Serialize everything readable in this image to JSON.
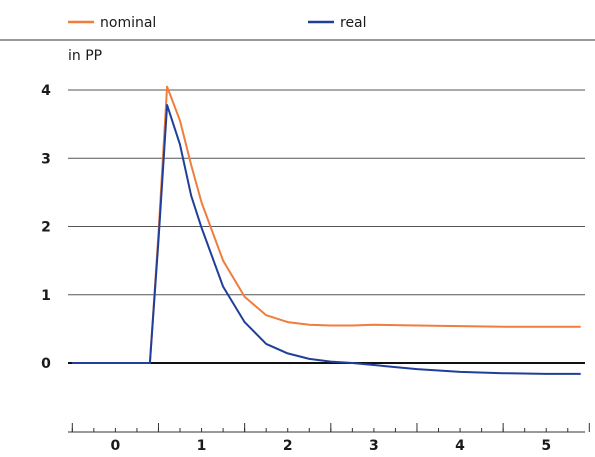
{
  "chart_data": {
    "type": "line",
    "ylabel": "in PP",
    "ylim": [
      -0.8,
      4.3
    ],
    "yticks": [
      0,
      1,
      2,
      3,
      4
    ],
    "xlim": [
      -0.55,
      5.45
    ],
    "xticks": [
      0,
      1,
      2,
      3,
      4,
      5
    ],
    "grid": true,
    "legend_position": "top",
    "series": [
      {
        "name": "nominal",
        "color": "#f07d3c",
        "x": [
          -0.5,
          0.0,
          0.2,
          0.4,
          0.5,
          0.6,
          0.75,
          0.88,
          1.0,
          1.25,
          1.5,
          1.75,
          2.0,
          2.25,
          2.5,
          2.75,
          3.0,
          3.5,
          4.0,
          4.5,
          5.0,
          5.4
        ],
        "y": [
          0,
          0,
          0,
          0,
          1.9,
          4.05,
          3.55,
          2.9,
          2.35,
          1.5,
          0.97,
          0.7,
          0.6,
          0.56,
          0.55,
          0.55,
          0.56,
          0.55,
          0.54,
          0.53,
          0.53,
          0.53
        ]
      },
      {
        "name": "real",
        "color": "#1f3f99",
        "x": [
          -0.5,
          0.0,
          0.2,
          0.4,
          0.5,
          0.6,
          0.75,
          0.88,
          1.0,
          1.25,
          1.5,
          1.75,
          2.0,
          2.25,
          2.5,
          2.75,
          3.0,
          3.25,
          3.5,
          4.0,
          4.5,
          5.0,
          5.4
        ],
        "y": [
          0,
          0,
          0,
          0,
          1.8,
          3.78,
          3.2,
          2.45,
          1.98,
          1.12,
          0.6,
          0.28,
          0.14,
          0.06,
          0.02,
          0.0,
          -0.03,
          -0.06,
          -0.09,
          -0.13,
          -0.15,
          -0.16,
          -0.16
        ]
      }
    ]
  }
}
